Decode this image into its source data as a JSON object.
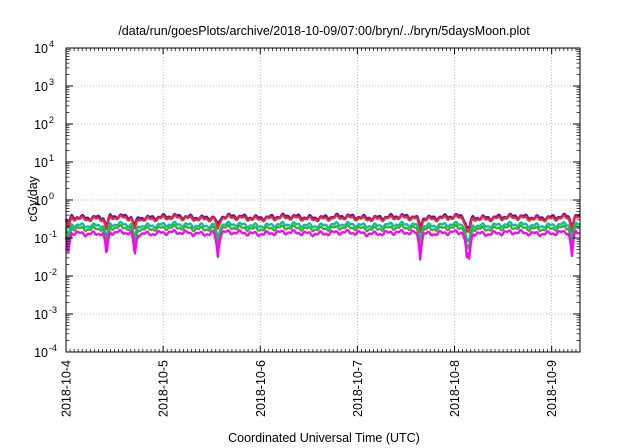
{
  "chart_data": {
    "type": "line",
    "title": "/data/run/goesPlots/archive/2018-10-09/07:00/bryn/../bryn/5daysMoon.plot",
    "xlabel": "Coordinated Universal Time (UTC)",
    "ylabel": "cGy/day",
    "yscale": "log",
    "ylim": [
      0.0001,
      10000
    ],
    "xlim": [
      "2018-10-04T00:00",
      "2018-10-09T07:00"
    ],
    "grid": true,
    "x_ticks": [
      "2018-10-4",
      "2018-10-5",
      "2018-10-6",
      "2018-10-7",
      "2018-10-8",
      "2018-10-9"
    ],
    "y_ticks": [
      {
        "value": 0.0001,
        "base": "10",
        "exp": "-4"
      },
      {
        "value": 0.001,
        "base": "10",
        "exp": "-3"
      },
      {
        "value": 0.01,
        "base": "10",
        "exp": "-2"
      },
      {
        "value": 0.1,
        "base": "10",
        "exp": "-1"
      },
      {
        "value": 1,
        "base": "10",
        "exp": "0"
      },
      {
        "value": 10,
        "base": "10",
        "exp": "1"
      },
      {
        "value": 100,
        "base": "10",
        "exp": "2"
      },
      {
        "value": 1000,
        "base": "10",
        "exp": "3"
      },
      {
        "value": 10000,
        "base": "10",
        "exp": "4"
      }
    ],
    "series": [
      {
        "color": "#2020ff",
        "level": 0.36
      },
      {
        "color": "#ff2020",
        "level": 0.33
      },
      {
        "color": "#20b0b0",
        "level": 0.22
      },
      {
        "color": "#20c020",
        "level": 0.18
      },
      {
        "color": "#ff00ff",
        "level": 0.135
      }
    ],
    "dips": [
      "2018-10-04T00:30",
      "2018-10-04T10:00",
      "2018-10-04T17:00",
      "2018-10-05T13:30",
      "2018-10-07T15:30",
      "2018-10-08T03:00",
      "2018-10-08T03:40",
      "2018-10-09T05:00"
    ]
  }
}
